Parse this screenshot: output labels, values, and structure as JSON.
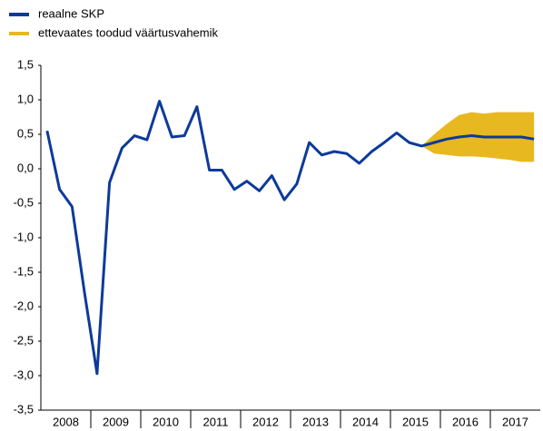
{
  "chart_data": {
    "type": "line",
    "categories": [
      "2008",
      null,
      null,
      null,
      "2009",
      null,
      null,
      null,
      "2010",
      null,
      null,
      null,
      "2011",
      null,
      null,
      null,
      "2012",
      null,
      null,
      null,
      "2013",
      null,
      null,
      null,
      "2014",
      null,
      null,
      null,
      "2015",
      null,
      null,
      null,
      "2016",
      null,
      null,
      null,
      "2017",
      null,
      null,
      null
    ],
    "series": [
      {
        "name": "reaalne SKP",
        "color": "#0d3a9a",
        "values": [
          0.55,
          -0.3,
          -0.55,
          -1.8,
          -2.97,
          -0.2,
          0.3,
          0.48,
          0.42,
          0.98,
          0.46,
          0.48,
          0.9,
          -0.02,
          -0.02,
          -0.3,
          -0.18,
          -0.32,
          -0.1,
          -0.45,
          -0.22,
          0.38,
          0.2,
          0.25,
          0.22,
          0.08,
          0.25,
          0.38,
          0.52,
          0.38,
          0.33,
          0.38,
          0.43,
          0.46,
          0.48,
          0.46,
          0.46,
          0.46,
          0.46,
          0.43
        ]
      },
      {
        "name": "ettevaates toodud väärtusvahemik",
        "color": "#e8b820",
        "type": "range",
        "low": [
          null,
          null,
          null,
          null,
          null,
          null,
          null,
          null,
          null,
          null,
          null,
          null,
          null,
          null,
          null,
          null,
          null,
          null,
          null,
          null,
          null,
          null,
          null,
          null,
          null,
          null,
          null,
          null,
          null,
          null,
          0.33,
          0.22,
          0.2,
          0.18,
          0.18,
          0.17,
          0.15,
          0.13,
          0.1,
          0.1
        ],
        "high": [
          null,
          null,
          null,
          null,
          null,
          null,
          null,
          null,
          null,
          null,
          null,
          null,
          null,
          null,
          null,
          null,
          null,
          null,
          null,
          null,
          null,
          null,
          null,
          null,
          null,
          null,
          null,
          null,
          null,
          null,
          0.33,
          0.5,
          0.65,
          0.78,
          0.82,
          0.8,
          0.82,
          0.82,
          0.82,
          0.82
        ]
      }
    ],
    "ylim": [
      -3.5,
      1.5
    ],
    "yticks": [
      {
        "value": -3.5,
        "label": "-3,5"
      },
      {
        "value": -3.0,
        "label": "-3,0"
      },
      {
        "value": -2.5,
        "label": "-2,5"
      },
      {
        "value": -2.0,
        "label": "-2,0"
      },
      {
        "value": -1.5,
        "label": "-1,5"
      },
      {
        "value": -1.0,
        "label": "-1,0"
      },
      {
        "value": -0.5,
        "label": "-0,5"
      },
      {
        "value": 0.0,
        "label": "0,0"
      },
      {
        "value": 0.5,
        "label": "0,5"
      },
      {
        "value": 1.0,
        "label": "1,0"
      },
      {
        "value": 1.5,
        "label": "1,5"
      }
    ],
    "legend": "top-left"
  }
}
